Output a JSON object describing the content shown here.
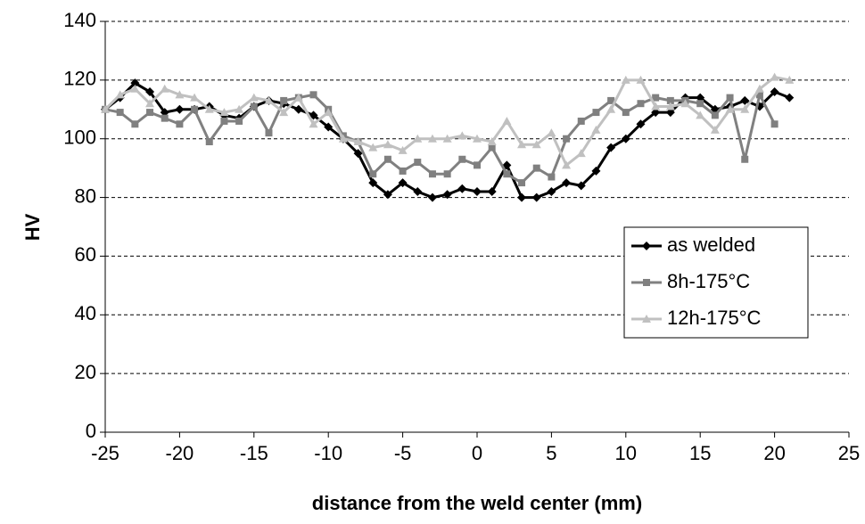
{
  "chart_data": {
    "type": "line",
    "xlabel": "distance from the weld center (mm)",
    "ylabel": "HV",
    "x": [
      -25,
      -24,
      -23,
      -22,
      -21,
      -20,
      -19,
      -18,
      -17,
      -16,
      -15,
      -14,
      -13,
      -12,
      -11,
      -10,
      -9,
      -8,
      -7,
      -6,
      -5,
      -4,
      -3,
      -2,
      -1,
      0,
      1,
      2,
      3,
      4,
      5,
      6,
      7,
      8,
      9,
      10,
      11,
      12,
      13,
      14,
      15,
      16,
      17,
      18,
      19,
      20,
      21
    ],
    "series": [
      {
        "name": "as welded",
        "color": "#000000",
        "marker": "diamond",
        "values": [
          110,
          114,
          119,
          116,
          109,
          110,
          110,
          111,
          108,
          107,
          111,
          113,
          112,
          110,
          108,
          104,
          100,
          95,
          85,
          81,
          85,
          82,
          80,
          81,
          83,
          82,
          82,
          91,
          80,
          80,
          82,
          85,
          84,
          89,
          97,
          100,
          105,
          109,
          109,
          114,
          114,
          110,
          111,
          113,
          111,
          116,
          114
        ]
      },
      {
        "name": "8h-175°C",
        "color": "#808080",
        "marker": "square",
        "values": [
          110,
          109,
          105,
          109,
          107,
          105,
          110,
          99,
          106,
          106,
          111,
          102,
          113,
          114,
          115,
          110,
          101,
          99,
          88,
          93,
          89,
          92,
          88,
          88,
          93,
          91,
          97,
          88,
          85,
          90,
          87,
          100,
          106,
          109,
          113,
          109,
          112,
          114,
          113,
          113,
          112,
          108,
          114,
          93,
          115,
          105,
          null
        ]
      },
      {
        "name": "12h-175°C",
        "color": "#c0c0c0",
        "marker": "triangle",
        "values": [
          110,
          115,
          117,
          112,
          117,
          115,
          114,
          110,
          109,
          110,
          114,
          113,
          109,
          114,
          105,
          109,
          100,
          99,
          97,
          98,
          96,
          100,
          100,
          100,
          101,
          100,
          99,
          106,
          98,
          98,
          102,
          91,
          95,
          103,
          110,
          120,
          120,
          111,
          111,
          112,
          108,
          103,
          110,
          110,
          117,
          121,
          120
        ]
      }
    ],
    "xlim": [
      -25,
      25
    ],
    "xticks": [
      -25,
      -20,
      -15,
      -10,
      -5,
      0,
      5,
      10,
      15,
      20,
      25
    ],
    "ylim": [
      0,
      140
    ],
    "yticks": [
      0,
      20,
      40,
      60,
      80,
      100,
      120,
      140
    ],
    "grid": true,
    "legend": "right"
  }
}
